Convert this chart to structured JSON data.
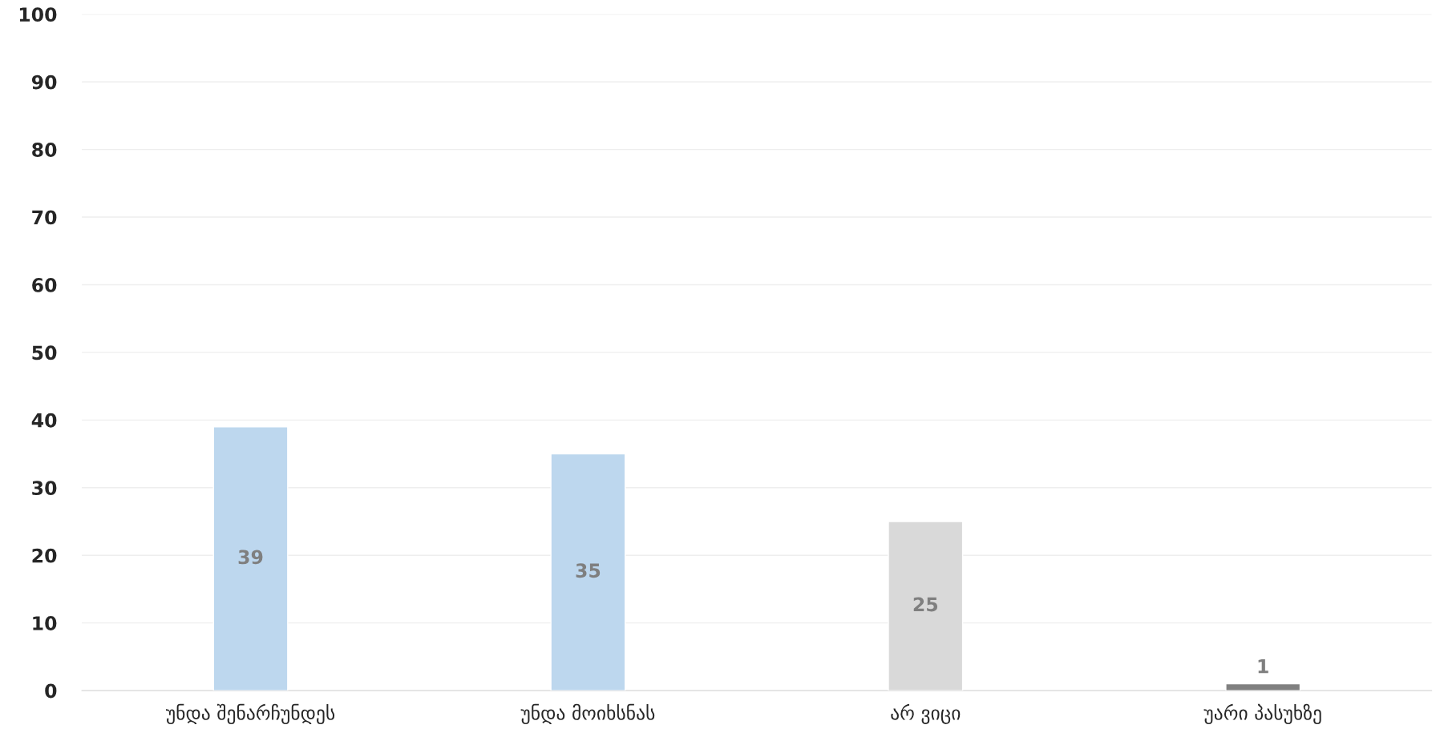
{
  "chart_data": {
    "type": "bar",
    "categories": [
      "უნდა შენარჩუნდეს",
      "უნდა მოიხსნას",
      "არ ვიცი",
      "უარი პასუხზე"
    ],
    "values": [
      39,
      35,
      25,
      1
    ],
    "colors": [
      "#bdd7ee",
      "#bdd7ee",
      "#d9d9d9",
      "#808080"
    ],
    "ylim": [
      0,
      100
    ],
    "yticks": [
      0,
      10,
      20,
      30,
      40,
      50,
      60,
      70,
      80,
      90,
      100
    ],
    "grid": "y",
    "data_labels": true
  }
}
